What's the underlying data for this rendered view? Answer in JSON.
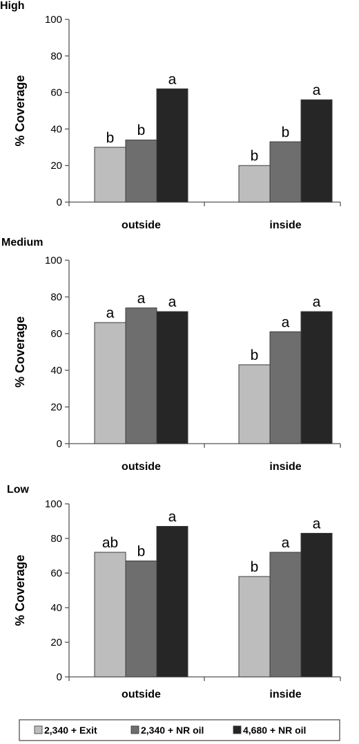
{
  "chart_data": [
    {
      "type": "bar",
      "title": "High",
      "ylabel": "% Coverage",
      "ylim": [
        0,
        100
      ],
      "yticks": [
        "0",
        "20",
        "40",
        "60",
        "80",
        "100"
      ],
      "categories": [
        "outside",
        "inside"
      ],
      "series": [
        {
          "name": "2,340 + Exit",
          "color": "#bdbdbd",
          "values": [
            30,
            20
          ],
          "labels": [
            "b",
            "b"
          ]
        },
        {
          "name": "2,340 + NR oil",
          "color": "#6e6e6e",
          "values": [
            34,
            33
          ],
          "labels": [
            "b",
            "b"
          ]
        },
        {
          "name": "4,680 + NR oil",
          "color": "#262626",
          "values": [
            62,
            56
          ],
          "labels": [
            "a",
            "a"
          ]
        }
      ]
    },
    {
      "type": "bar",
      "title": "Medium",
      "ylabel": "% Coverage",
      "ylim": [
        0,
        100
      ],
      "yticks": [
        "0",
        "20",
        "40",
        "60",
        "80",
        "100"
      ],
      "categories": [
        "outside",
        "inside"
      ],
      "series": [
        {
          "name": "2,340 + Exit",
          "color": "#bdbdbd",
          "values": [
            66,
            43
          ],
          "labels": [
            "a",
            "b"
          ]
        },
        {
          "name": "2,340 + NR oil",
          "color": "#6e6e6e",
          "values": [
            74,
            61
          ],
          "labels": [
            "a",
            "a"
          ]
        },
        {
          "name": "4,680 + NR oil",
          "color": "#262626",
          "values": [
            72,
            72
          ],
          "labels": [
            "a",
            "a"
          ]
        }
      ]
    },
    {
      "type": "bar",
      "title": "Low",
      "ylabel": "% Coverage",
      "ylim": [
        0,
        100
      ],
      "yticks": [
        "0",
        "20",
        "40",
        "60",
        "80",
        "100"
      ],
      "categories": [
        "outside",
        "inside"
      ],
      "series": [
        {
          "name": "2,340 + Exit",
          "color": "#bdbdbd",
          "values": [
            72,
            58
          ],
          "labels": [
            "ab",
            "b"
          ]
        },
        {
          "name": "2,340 + NR oil",
          "color": "#6e6e6e",
          "values": [
            67,
            72
          ],
          "labels": [
            "b",
            "a"
          ]
        },
        {
          "name": "4,680 + NR oil",
          "color": "#262626",
          "values": [
            87,
            83
          ],
          "labels": [
            "a",
            "a"
          ]
        }
      ]
    }
  ],
  "legend": {
    "placement": "bottom",
    "entries": [
      "2,340 + Exit",
      "2,340 + NR oil",
      "4,680 + NR oil"
    ]
  }
}
